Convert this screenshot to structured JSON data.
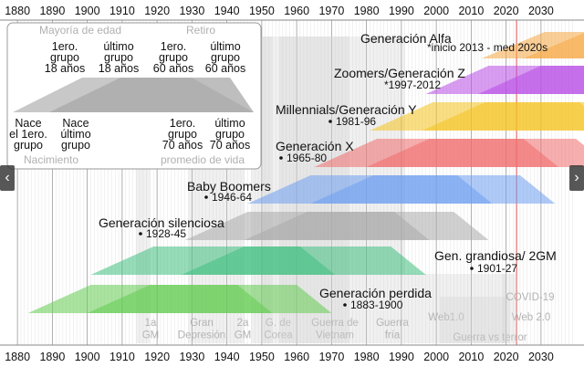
{
  "chart_data": {
    "type": "timeline",
    "axis": {
      "ticks": [
        "1880",
        "1890",
        "1900",
        "1910",
        "1920",
        "1930",
        "1940",
        "1950",
        "1960",
        "1970",
        "1980",
        "1990",
        "2000",
        "2010",
        "2020",
        "2030"
      ],
      "x_range": [
        1875,
        2035
      ]
    },
    "current_year": 2023,
    "generations": [
      {
        "label": "Generación Alfa",
        "sublabel": "*inicio 2013 - med 2020s",
        "birth": [
          2013,
          2025
        ],
        "color": "#f5a742"
      },
      {
        "label": "Zoomers/Generación Z",
        "sublabel": "*1997-2012",
        "birth": [
          1997,
          2012
        ],
        "color": "#b84be6"
      },
      {
        "label": "Millennials/Generación Y",
        "sublabel": "1981-96",
        "birth": [
          1981,
          1996
        ],
        "color": "#f4c21f"
      },
      {
        "label": "Generación X",
        "sublabel": "1965-80",
        "birth": [
          1965,
          1980
        ],
        "color": "#f06b6b"
      },
      {
        "label": "Baby Boomers",
        "sublabel": "1946-64",
        "birth": [
          1946,
          1964
        ],
        "color": "#6d9ff0"
      },
      {
        "label": "Generación silenciosa",
        "sublabel": "1928-45",
        "birth": [
          1928,
          1945
        ],
        "color": "#a9a9a9"
      },
      {
        "label": "Gen. grandiosa/ 2GM",
        "sublabel": "1901-27",
        "birth": [
          1901,
          1927
        ],
        "color": "#3fbf7f"
      },
      {
        "label": "Generación perdida",
        "sublabel": "1883-1900",
        "birth": [
          1883,
          1900
        ],
        "color": "#62cc50"
      }
    ],
    "events": [
      {
        "label": "1a GM",
        "years": [
          1914,
          1918
        ]
      },
      {
        "label": "Gran Depresión",
        "years": [
          1929,
          1939
        ]
      },
      {
        "label": "2a GM",
        "years": [
          1939,
          1945
        ]
      },
      {
        "label": "G. de Corea",
        "years": [
          1950,
          1953
        ]
      },
      {
        "label": "Guerra de Vietnam",
        "years": [
          1955,
          1975
        ]
      },
      {
        "label": "Guerra fría",
        "years": [
          1947,
          1991
        ]
      },
      {
        "label": "Web1.0",
        "years": [
          1991,
          2004
        ]
      },
      {
        "label": "Guerra vs terror",
        "years": [
          2001,
          2021
        ]
      },
      {
        "label": "Web 2.0",
        "years": [
          2004,
          2020
        ]
      },
      {
        "label": "COVID-19",
        "years": [
          2019,
          2023
        ]
      }
    ]
  },
  "legend": {
    "top_left": "Mayoría de edad",
    "top_right": "Retiro",
    "bottom_left": "Nacimiento",
    "bottom_right": "promedio de vida",
    "top_labels": [
      "1ero. grupo 18 años",
      "último grupo 18 años",
      "1ero. grupo 60 años",
      "último grupo 60 años"
    ],
    "bottom_labels": [
      "Nace el 1ero. grupo",
      "Nace último grupo",
      "1ero. grupo 70 años",
      "último grupo 70 años"
    ]
  },
  "nav": {
    "prev": "‹",
    "next": "›"
  },
  "icons": {
    "prev": "chevron-left-icon",
    "next": "chevron-right-icon"
  }
}
